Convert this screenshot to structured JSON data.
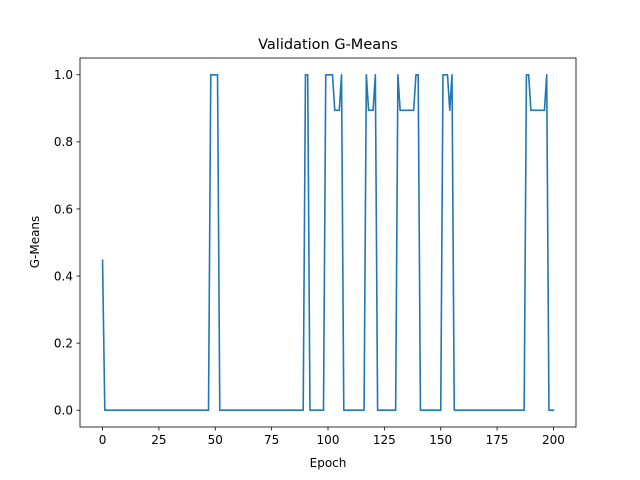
{
  "chart_data": {
    "type": "line",
    "title": "Validation G-Means",
    "xlabel": "Epoch",
    "ylabel": "G-Means",
    "xlim": [
      -10,
      210
    ],
    "ylim": [
      -0.05,
      1.05
    ],
    "xticks": [
      0,
      25,
      50,
      75,
      100,
      125,
      150,
      175,
      200
    ],
    "yticks": [
      0.0,
      0.2,
      0.4,
      0.6,
      0.8,
      1.0
    ],
    "xtick_labels": [
      "0",
      "25",
      "50",
      "75",
      "100",
      "125",
      "150",
      "175",
      "200"
    ],
    "ytick_labels": [
      "0.0",
      "0.2",
      "0.4",
      "0.6",
      "0.8",
      "1.0"
    ],
    "grid": false,
    "series": [
      {
        "color": "#1f77b4",
        "points": [
          [
            0,
            0.447
          ],
          [
            1,
            0.0
          ],
          [
            47,
            0.0
          ],
          [
            48,
            1.0
          ],
          [
            51,
            1.0
          ],
          [
            52,
            0.0
          ],
          [
            89,
            0.0
          ],
          [
            90,
            1.0
          ],
          [
            91,
            1.0
          ],
          [
            92,
            0.0
          ],
          [
            98,
            0.0
          ],
          [
            99,
            1.0
          ],
          [
            102,
            1.0
          ],
          [
            103,
            0.894
          ],
          [
            105,
            0.894
          ],
          [
            106,
            1.0
          ],
          [
            107,
            0.0
          ],
          [
            116,
            0.0
          ],
          [
            117,
            1.0
          ],
          [
            118,
            0.894
          ],
          [
            120,
            0.894
          ],
          [
            121,
            1.0
          ],
          [
            122,
            0.0
          ],
          [
            130,
            0.0
          ],
          [
            131,
            1.0
          ],
          [
            132,
            0.894
          ],
          [
            138,
            0.894
          ],
          [
            139,
            1.0
          ],
          [
            140,
            1.0
          ],
          [
            141,
            0.0
          ],
          [
            150,
            0.0
          ],
          [
            151,
            1.0
          ],
          [
            153,
            1.0
          ],
          [
            154,
            0.894
          ],
          [
            155,
            1.0
          ],
          [
            156,
            0.0
          ],
          [
            187,
            0.0
          ],
          [
            188,
            1.0
          ],
          [
            189,
            1.0
          ],
          [
            190,
            0.894
          ],
          [
            196,
            0.894
          ],
          [
            197,
            1.0
          ],
          [
            198,
            0.0
          ],
          [
            200,
            0.0
          ]
        ]
      }
    ]
  }
}
